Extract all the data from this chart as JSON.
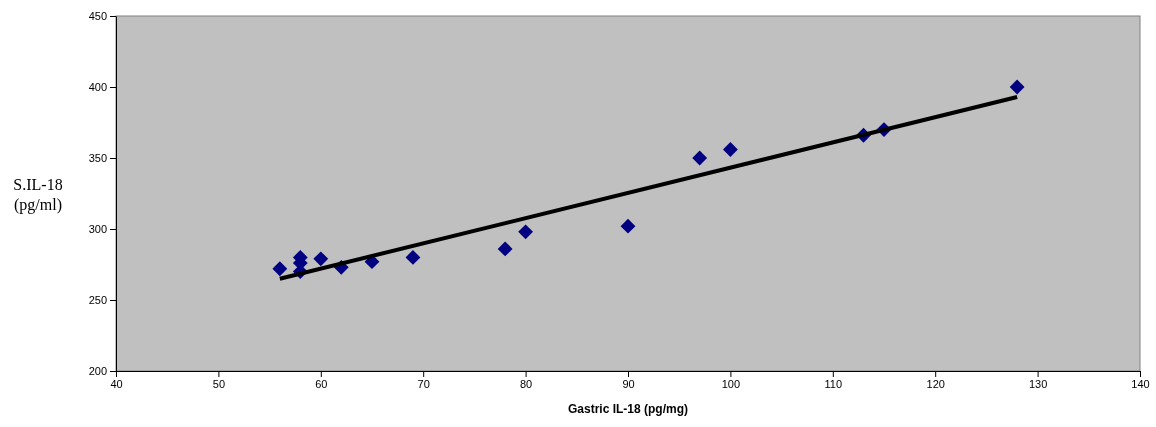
{
  "chart_data": {
    "type": "scatter",
    "xlabel": "Gastric IL-18 (pg/mg)",
    "ylabel": "S.IL-18\n(pg/ml)",
    "xlim": [
      40,
      140
    ],
    "xticks": [
      40,
      50,
      60,
      70,
      80,
      90,
      100,
      110,
      120,
      130,
      140
    ],
    "ylim": [
      200,
      450
    ],
    "yticks": [
      200,
      250,
      300,
      350,
      400,
      450
    ],
    "grid": false,
    "series": [
      {
        "marker": "diamond",
        "color": "#000080",
        "x": [
          56,
          58,
          58,
          58,
          60,
          62,
          65,
          69,
          78,
          80,
          90,
          97,
          100,
          113,
          115,
          128
        ],
        "values": [
          272,
          280,
          276,
          270,
          279,
          273,
          277,
          280,
          286,
          298,
          302,
          350,
          356,
          366,
          370,
          400
        ]
      },
      {
        "type": "line",
        "color": "#000000",
        "x": [
          56,
          128
        ],
        "values": [
          265,
          393
        ]
      }
    ]
  }
}
